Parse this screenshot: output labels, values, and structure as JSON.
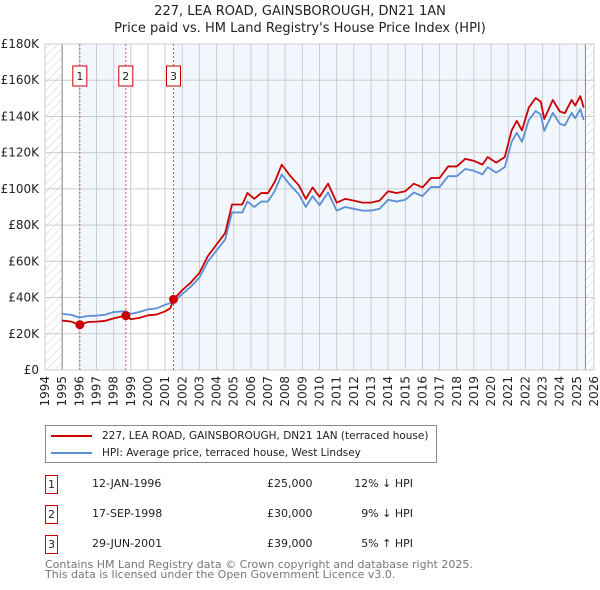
{
  "chart_data": {
    "type": "line",
    "title": "227, LEA ROAD, GAINSBOROUGH, DN21 1AN",
    "subtitle": "Price paid vs. HM Land Registry's House Price Index (HPI)",
    "xlim": [
      1994,
      2026
    ],
    "ylim": [
      0,
      180000
    ],
    "x_ticks": [
      "1994",
      "1995",
      "1996",
      "1997",
      "1998",
      "1999",
      "2000",
      "2001",
      "2002",
      "2003",
      "2004",
      "2005",
      "2006",
      "2007",
      "2008",
      "2009",
      "2010",
      "2011",
      "2012",
      "2013",
      "2014",
      "2015",
      "2016",
      "2017",
      "2018",
      "2019",
      "2020",
      "2021",
      "2022",
      "2023",
      "2024",
      "2025",
      "2026"
    ],
    "y_ticks": [
      {
        "v": 0,
        "label": "£0"
      },
      {
        "v": 20000,
        "label": "£20K"
      },
      {
        "v": 40000,
        "label": "£40K"
      },
      {
        "v": 60000,
        "label": "£60K"
      },
      {
        "v": 80000,
        "label": "£80K"
      },
      {
        "v": 100000,
        "label": "£100K"
      },
      {
        "v": 120000,
        "label": "£120K"
      },
      {
        "v": 140000,
        "label": "£140K"
      },
      {
        "v": 160000,
        "label": "£160K"
      },
      {
        "v": 180000,
        "label": "£180K"
      }
    ],
    "grid": true,
    "series": [
      {
        "name": "227, LEA ROAD, GAINSBOROUGH, DN21 1AN (terraced house)",
        "color": "#cc0000",
        "points": [
          [
            1995.0,
            27300
          ],
          [
            1995.5,
            26800
          ],
          [
            1996.0,
            25000
          ],
          [
            1996.5,
            26500
          ],
          [
            1997.0,
            26700
          ],
          [
            1997.5,
            27100
          ],
          [
            1998.0,
            28500
          ],
          [
            1998.7,
            30000
          ],
          [
            1999.0,
            28000
          ],
          [
            1999.5,
            28800
          ],
          [
            2000.0,
            30200
          ],
          [
            2000.5,
            30600
          ],
          [
            2001.0,
            32400
          ],
          [
            2001.3,
            34000
          ],
          [
            2001.5,
            39000
          ],
          [
            2002.0,
            44100
          ],
          [
            2002.5,
            48300
          ],
          [
            2003.0,
            53600
          ],
          [
            2003.5,
            63000
          ],
          [
            2004.0,
            69300
          ],
          [
            2004.5,
            75600
          ],
          [
            2004.9,
            91400
          ],
          [
            2005.5,
            91400
          ],
          [
            2005.8,
            97700
          ],
          [
            2006.2,
            94500
          ],
          [
            2006.6,
            97700
          ],
          [
            2007.0,
            97700
          ],
          [
            2007.4,
            104000
          ],
          [
            2007.8,
            113400
          ],
          [
            2008.3,
            107100
          ],
          [
            2008.8,
            101900
          ],
          [
            2009.2,
            94500
          ],
          [
            2009.6,
            100800
          ],
          [
            2010.0,
            95600
          ],
          [
            2010.5,
            102900
          ],
          [
            2011.0,
            92400
          ],
          [
            2011.5,
            94500
          ],
          [
            2012.0,
            93500
          ],
          [
            2012.5,
            92400
          ],
          [
            2013.0,
            92400
          ],
          [
            2013.5,
            93500
          ],
          [
            2014.0,
            98700
          ],
          [
            2014.5,
            97700
          ],
          [
            2015.0,
            98700
          ],
          [
            2015.5,
            102900
          ],
          [
            2016.0,
            100800
          ],
          [
            2016.5,
            106000
          ],
          [
            2017.0,
            106000
          ],
          [
            2017.5,
            112400
          ],
          [
            2018.0,
            112400
          ],
          [
            2018.5,
            116600
          ],
          [
            2019.0,
            115500
          ],
          [
            2019.5,
            113400
          ],
          [
            2019.8,
            117600
          ],
          [
            2020.3,
            114500
          ],
          [
            2020.8,
            117600
          ],
          [
            2021.2,
            132300
          ],
          [
            2021.5,
            137600
          ],
          [
            2021.8,
            132300
          ],
          [
            2022.2,
            144900
          ],
          [
            2022.6,
            150200
          ],
          [
            2022.9,
            148100
          ],
          [
            2023.1,
            138600
          ],
          [
            2023.6,
            149100
          ],
          [
            2024.0,
            142800
          ],
          [
            2024.3,
            141800
          ],
          [
            2024.7,
            149100
          ],
          [
            2024.9,
            146000
          ],
          [
            2025.2,
            151200
          ],
          [
            2025.4,
            144900
          ]
        ]
      },
      {
        "name": "HPI: Average price, terraced house, West Lindsey",
        "color": "#5b8fd6",
        "points": [
          [
            1995.0,
            31000
          ],
          [
            1995.5,
            30500
          ],
          [
            1996.0,
            29000
          ],
          [
            1996.5,
            29800
          ],
          [
            1997.0,
            30000
          ],
          [
            1997.5,
            30500
          ],
          [
            1998.0,
            32000
          ],
          [
            1998.7,
            32500
          ],
          [
            1999.0,
            31000
          ],
          [
            1999.5,
            32000
          ],
          [
            2000.0,
            33500
          ],
          [
            2000.5,
            34000
          ],
          [
            2001.0,
            36000
          ],
          [
            2001.5,
            37500
          ],
          [
            2002.0,
            42000
          ],
          [
            2002.5,
            46000
          ],
          [
            2003.0,
            51000
          ],
          [
            2003.5,
            60000
          ],
          [
            2004.0,
            66000
          ],
          [
            2004.5,
            72000
          ],
          [
            2004.9,
            87000
          ],
          [
            2005.5,
            87000
          ],
          [
            2005.8,
            93000
          ],
          [
            2006.2,
            90000
          ],
          [
            2006.6,
            93000
          ],
          [
            2007.0,
            93000
          ],
          [
            2007.4,
            99000
          ],
          [
            2007.8,
            108000
          ],
          [
            2008.3,
            102000
          ],
          [
            2008.8,
            97000
          ],
          [
            2009.2,
            90000
          ],
          [
            2009.6,
            96000
          ],
          [
            2010.0,
            91000
          ],
          [
            2010.5,
            98000
          ],
          [
            2011.0,
            88000
          ],
          [
            2011.5,
            90000
          ],
          [
            2012.0,
            89000
          ],
          [
            2012.5,
            88000
          ],
          [
            2013.0,
            88000
          ],
          [
            2013.5,
            89000
          ],
          [
            2014.0,
            94000
          ],
          [
            2014.5,
            93000
          ],
          [
            2015.0,
            94000
          ],
          [
            2015.5,
            98000
          ],
          [
            2016.0,
            96000
          ],
          [
            2016.5,
            101000
          ],
          [
            2017.0,
            101000
          ],
          [
            2017.5,
            107000
          ],
          [
            2018.0,
            107000
          ],
          [
            2018.5,
            111000
          ],
          [
            2019.0,
            110000
          ],
          [
            2019.5,
            108000
          ],
          [
            2019.8,
            112000
          ],
          [
            2020.3,
            109000
          ],
          [
            2020.8,
            112000
          ],
          [
            2021.2,
            126000
          ],
          [
            2021.5,
            131000
          ],
          [
            2021.8,
            126000
          ],
          [
            2022.2,
            138000
          ],
          [
            2022.6,
            143000
          ],
          [
            2022.9,
            141000
          ],
          [
            2023.1,
            132000
          ],
          [
            2023.6,
            142000
          ],
          [
            2024.0,
            136000
          ],
          [
            2024.3,
            135000
          ],
          [
            2024.7,
            142000
          ],
          [
            2024.9,
            139000
          ],
          [
            2025.2,
            144000
          ],
          [
            2025.4,
            138000
          ]
        ]
      }
    ],
    "sales": [
      {
        "id": "1",
        "x": 1996.03,
        "price": 25000,
        "date": "12-JAN-1996",
        "price_label": "£25,000",
        "hpi_label": "12% ↓ HPI"
      },
      {
        "id": "2",
        "x": 1998.71,
        "price": 30000,
        "date": "17-SEP-1998",
        "price_label": "£30,000",
        "hpi_label": "9% ↓ HPI"
      },
      {
        "id": "3",
        "x": 2001.49,
        "price": 39000,
        "date": "29-JUN-2001",
        "price_label": "£39,000",
        "hpi_label": "5% ↑ HPI"
      }
    ],
    "data_range": [
      1995,
      2025.5
    ],
    "legend_position": "bottom"
  },
  "footer": {
    "line1": "Contains HM Land Registry data © Crown copyright and database right 2025.",
    "line2": "This data is licensed under the Open Government Licence v3.0."
  }
}
